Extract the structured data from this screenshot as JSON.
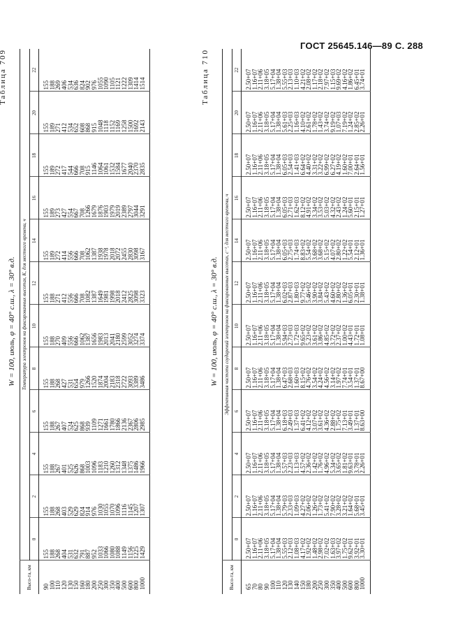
{
  "header": "ГОСТ 25645.146—89  С. 288",
  "table709": {
    "label": "Таблица 709",
    "caption": "W = 100, июль, φ = 40° с.ш., λ = 30° в.д.",
    "group_header": "Температура электронов на фиксированных высотах, K, для местного времени, ч",
    "height_header": "Высо-та, км",
    "columns": [
      "0",
      "2",
      "4",
      "6",
      "8",
      "10",
      "12",
      "14",
      "16",
      "18",
      "20",
      "22"
    ],
    "rows": [
      [
        "90",
        "155",
        "155",
        "155",
        "155",
        "155",
        "155",
        "155",
        "155",
        "155",
        "155",
        "155",
        "155"
      ],
      [
        "100",
        "188",
        "188",
        "188",
        "188",
        "188",
        "188",
        "188",
        "189",
        "189",
        "189",
        "189",
        "188"
      ],
      [
        "110",
        "268",
        "268",
        "267",
        "267",
        "268",
        "270",
        "271",
        "272",
        "273",
        "272",
        "271",
        "269"
      ],
      [
        "120",
        "404",
        "403",
        "401",
        "407",
        "427",
        "409",
        "412",
        "414",
        "427",
        "417",
        "412",
        "406"
      ],
      [
        "130",
        "531",
        "529",
        "525",
        "524",
        "531",
        "556",
        "556",
        "556",
        "554",
        "544",
        "534",
        "534"
      ],
      [
        "150",
        "632",
        "629",
        "626",
        "625",
        "654",
        "666",
        "666",
        "666",
        "667",
        "666",
        "652",
        "636"
      ],
      [
        "160",
        "791",
        "824",
        "868",
        "868",
        "979",
        "1062",
        "708",
        "708",
        "708",
        "708",
        "608",
        "824"
      ],
      [
        "180",
        "887",
        "914",
        "1003",
        "939",
        "1266",
        "1387",
        "1082",
        "1062",
        "1266",
        "915",
        "868",
        "902"
      ],
      [
        "200",
        "952",
        "976",
        "1096",
        "1109",
        "1520",
        "1656",
        "1387",
        "1387",
        "1679",
        "1146",
        "915",
        "976"
      ],
      [
        "250",
        "1033",
        "1030",
        "1183",
        "1271",
        "1874",
        "1983",
        "1649",
        "1938",
        "1876",
        "1064",
        "1048",
        "1055"
      ],
      [
        "300",
        "1066",
        "1055",
        "1210",
        "1661",
        "2004",
        "2013",
        "1981",
        "1978",
        "1903",
        "1061",
        "1118",
        "1090"
      ],
      [
        "350",
        "1080",
        "1070",
        "1260",
        "1780",
        "2183",
        "2041",
        "1998",
        "2018",
        "1979",
        "1532",
        "1152",
        "1105"
      ],
      [
        "400",
        "1088",
        "1096",
        "1312",
        "1866",
        "2318",
        "2180",
        "2018",
        "2072",
        "2019",
        "1584",
        "1169",
        "1121"
      ],
      [
        "500",
        "1149",
        "1116",
        "1348",
        "2136",
        "2722",
        "2599",
        "2412",
        "2455",
        "2389",
        "1677",
        "1258",
        "1222"
      ],
      [
        "600",
        "1156",
        "1145",
        "1375",
        "2367",
        "3093",
        "3052",
        "2825",
        "2830",
        "2797",
        "2040",
        "1500",
        "1309"
      ],
      [
        "800",
        "1225",
        "1207",
        "1486",
        "2806",
        "3389",
        "3274",
        "3098",
        "3098",
        "3044",
        "2370",
        "1692",
        "1414"
      ],
      [
        "1000",
        "1429",
        "1307",
        "1966",
        "2985",
        "3486",
        "3374",
        "3323",
        "3167",
        "3291",
        "2835",
        "2143",
        "1514"
      ]
    ]
  },
  "table710": {
    "label": "Таблица 710",
    "caption": "W = 100, июль, φ = 40° с.ш., λ = 30° в.д.",
    "group_header": "Эффективная частота соударений электронов на фиксированных высотах, с⁻¹, для местного времени, ч",
    "height_header": "Высо-та, км",
    "columns": [
      "0",
      "2",
      "4",
      "6",
      "8",
      "10",
      "12",
      "14",
      "16",
      "18",
      "20",
      "22"
    ],
    "rows": [
      [
        "65",
        "2.50+07",
        "2.50+07",
        "2.50+07",
        "2.50+07",
        "2.50+07",
        "2.50+07",
        "2.50+07",
        "2.50+07",
        "2.50+07",
        "2.50+07",
        "2.50+07",
        "2.50+07"
      ],
      [
        "70",
        "1.16+07",
        "1.16+07",
        "1.16+07",
        "1.16+07",
        "1.16+07",
        "1.16+07",
        "1.16+07",
        "1.16+07",
        "1.16+07",
        "1.16+07",
        "1.16+07",
        "1.16+07"
      ],
      [
        "80",
        "2.11+06",
        "2.11+06",
        "2.11+06",
        "2.11+06",
        "2.11+06",
        "2.11+06",
        "2.11+06",
        "2.11+06",
        "2.11+06",
        "2.11+06",
        "2.11+06",
        "2.11+06"
      ],
      [
        "90",
        "3.18+05",
        "3.18+05",
        "3.18+05",
        "3.18+05",
        "3.18+05",
        "3.18+05",
        "3.18+05",
        "3.18+05",
        "3.18+05",
        "3.18+05",
        "3.18+05",
        "3.18+05"
      ],
      [
        "100",
        "5.17+04",
        "5.17+04",
        "5.17+04",
        "5.17+04",
        "5.17+04",
        "5.17+04",
        "5.17+04",
        "5.17+04",
        "5.17+04",
        "5.17+04",
        "5.17+04",
        "5.17+04"
      ],
      [
        "110",
        "1.38+04",
        "1.38+04",
        "1.38+04",
        "1.38+04",
        "1.38+04",
        "1.38+04",
        "1.38+04",
        "1.38+04",
        "1.38+04",
        "1.38+04",
        "1.38+04",
        "1.38+04"
      ],
      [
        "120",
        "5.55+03",
        "5.79+03",
        "5.57+03",
        "6.18+03",
        "6.47+03",
        "5.94+03",
        "6.02+03",
        "6.05+03",
        "6.05+03",
        "6.05+03",
        "5.61+03",
        "5.55+03"
      ],
      [
        "130",
        "2.12+03",
        "2.33+03",
        "2.23+03",
        "2.49+03",
        "2.68+03",
        "2.73+03",
        "2.87+03",
        "2.75+03",
        "2.71+03",
        "2.54+03",
        "2.25+03",
        "2.13+03"
      ],
      [
        "140",
        "1.08+03",
        "1.09+03",
        "1.13+03",
        "1.37+03",
        "1.60+03",
        "1.72+03",
        "1.80+03",
        "1.74+03",
        "1.62+03",
        "1.41+03",
        "1.16+03",
        "1.10+03"
      ],
      [
        "150",
        "4.17+02",
        "4.27+02",
        "4.57+02",
        "6.41+02",
        "8.15+02",
        "9.65+02",
        "9.77+02",
        "8.83+02",
        "8.12+02",
        "6.64+02",
        "4.10+02",
        "4.21+02"
      ],
      [
        "180",
        "1.92+02",
        "2.06+02",
        "2.36+02",
        "4.12+02",
        "4.76+02",
        "5.23+02",
        "5.46+02",
        "5.54+02",
        "4.91+02",
        "4.40+02",
        "2.61+02",
        "2.08+02"
      ],
      [
        "200",
        "1.48+02",
        "1.26+02",
        "1.42+02",
        "3.07+02",
        "3.54+02",
        "3.61+02",
        "3.90+02",
        "3.68+02",
        "3.34+02",
        "3.31+02",
        "1.78+02",
        "1.17+02"
      ],
      [
        "250",
        "2.98+02",
        "1.73+02",
        "1.76+02",
        "3.61+02",
        "4.24+02",
        "3.86+02",
        "3.84+02",
        "3.68+02",
        "3.53+02",
        "3.22+02",
        "1.43+02",
        "2.18+02"
      ],
      [
        "300",
        "7.02+02",
        "5.41+02",
        "4.96+02",
        "4.36+02",
        "4.56+02",
        "4.85+02",
        "5.43+02",
        "5.15+02",
        "5.03+02",
        "6.99+02",
        "3.74+02",
        "7.97+02"
      ],
      [
        "350",
        "1.63+03",
        "7.90+02",
        "5.34+02",
        "2.88+02",
        "3.14+02",
        "3.72+02",
        "4.60+02",
        "4.07+02",
        "4.32+02",
        "6.27+02",
        "9.19+02",
        "1.15+03"
      ],
      [
        "400",
        "3.97+02",
        "3.28+02",
        "3.65+02",
        "1.75+02",
        "1.97+02",
        "2.37+02",
        "2.80+02",
        "2.80+02",
        "2.43+02",
        "4.19+02",
        "1.07+03",
        "9.69+02"
      ],
      [
        "500",
        "1.75+02",
        "3.21+02",
        "1.81+02",
        "7.13+01",
        "7.74+01",
        "1.00+02",
        "1.36+02",
        "1.22+02",
        "1.24+02",
        "1.60+02",
        "7.19+02",
        "4.16+02"
      ],
      [
        "600",
        "9.62+01",
        "1.64+02",
        "9.63+01",
        "3.49+01",
        "3.54+01",
        "4.43+01",
        "6.05+01",
        "5.54+01",
        "5.60+01",
        "7.00+01",
        "1.24+02",
        "1.86+02"
      ],
      [
        "800",
        "3.92+01",
        "5.68+01",
        "3.78+01",
        "1.37+01",
        "1.37+01",
        "1.72+01",
        "2.30+01",
        "2.12+01",
        "2.15+01",
        "2.64+01",
        "2.85+02",
        "6.45+01"
      ],
      [
        "1000",
        "3.30+01",
        "3.45+01",
        "2.26+01",
        "8.63+00",
        "8.67+00",
        "1.08+01",
        "1.38+01",
        "1.36+01",
        "1.27+01",
        "1.56+01",
        "2.26+01",
        "3.74+01"
      ]
    ]
  }
}
